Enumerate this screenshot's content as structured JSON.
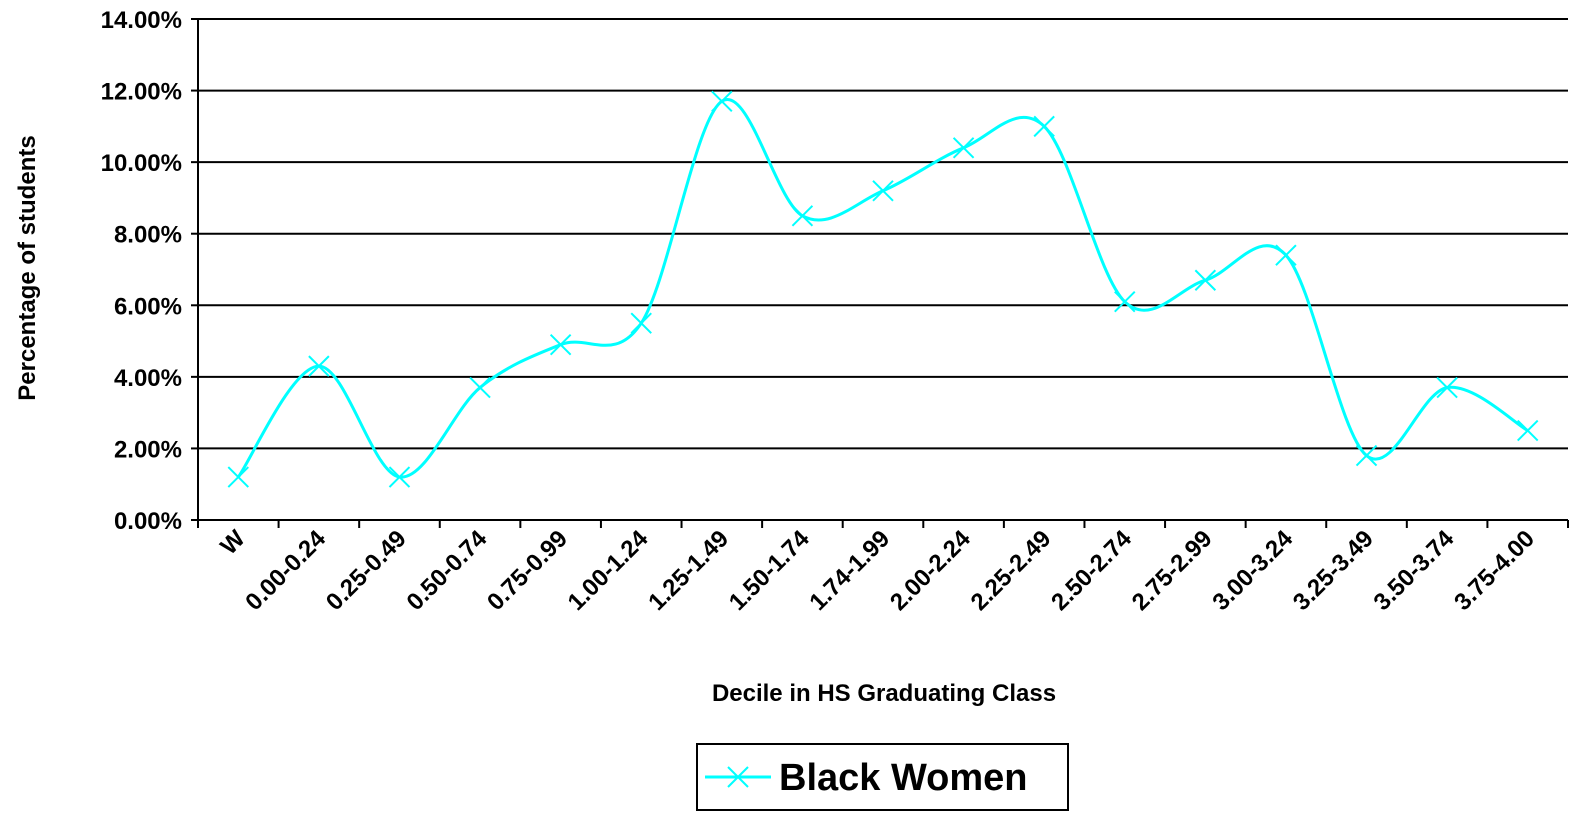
{
  "chart_data": {
    "type": "line",
    "title": "",
    "xlabel": "Decile in HS Graduating Class",
    "ylabel": "Percentage of students",
    "categories": [
      "W",
      "0.00-0.24",
      "0.25-0.49",
      "0.50-0.74",
      "0.75-0.99",
      "1.00-1.24",
      "1.25-1.49",
      "1.50-1.74",
      "1.74-1.99",
      "2.00-2.24",
      "2.25-2.49",
      "2.50-2.74",
      "2.75-2.99",
      "3.00-3.24",
      "3.25-3.49",
      "3.50-3.74",
      "3.75-4.00"
    ],
    "y_ticks": [
      "0.00%",
      "2.00%",
      "4.00%",
      "6.00%",
      "8.00%",
      "10.00%",
      "12.00%",
      "14.00%"
    ],
    "ylim": [
      0,
      14
    ],
    "grid": true,
    "smooth": true,
    "series": [
      {
        "name": "Black Women",
        "color": "#00FFFF",
        "marker": "x",
        "values": [
          1.2,
          4.3,
          1.2,
          3.7,
          4.9,
          5.5,
          11.7,
          8.5,
          9.2,
          10.4,
          11.0,
          6.1,
          6.7,
          7.4,
          1.8,
          3.7,
          2.5
        ]
      }
    ],
    "legend_position": "bottom"
  }
}
